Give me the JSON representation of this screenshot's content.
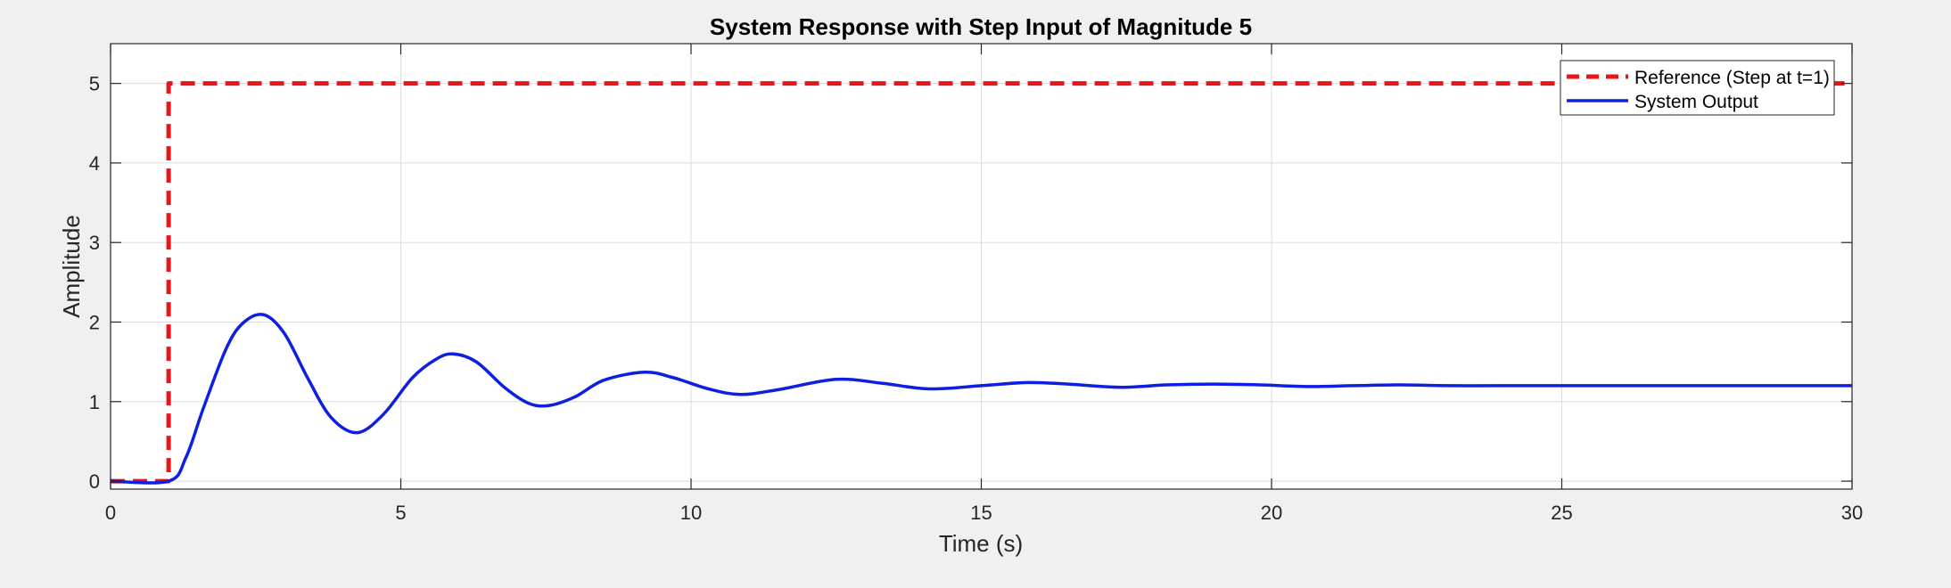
{
  "chart_data": {
    "type": "line",
    "title": "System Response with Step Input of Magnitude 5",
    "xlabel": "Time (s)",
    "ylabel": "Amplitude",
    "xlim": [
      0,
      30
    ],
    "ylim": [
      -0.1,
      5.5
    ],
    "xticks": [
      0,
      5,
      10,
      15,
      20,
      25,
      30
    ],
    "yticks": [
      0,
      1,
      2,
      3,
      4,
      5
    ],
    "grid": true,
    "legend_position": "top-right",
    "series": [
      {
        "name": "Reference (Step at t=1)",
        "style": "dashed",
        "color": "#e8151b",
        "x": [
          0,
          1,
          1,
          30
        ],
        "y": [
          0,
          0,
          5,
          5
        ]
      },
      {
        "name": "System Output",
        "style": "solid",
        "color": "#0f1fe0",
        "x": [
          0,
          1.0,
          1.3,
          1.6,
          2.0,
          2.3,
          2.65,
          3.0,
          3.4,
          3.8,
          4.25,
          4.7,
          5.2,
          5.6,
          5.9,
          6.3,
          6.8,
          7.2,
          7.55,
          8.0,
          8.5,
          9.2,
          9.7,
          10.3,
          10.85,
          11.5,
          12.5,
          13.3,
          14.1,
          15.0,
          15.8,
          16.5,
          17.4,
          18.2,
          19.0,
          19.8,
          20.6,
          21.4,
          22.2,
          23.1,
          24.0,
          25.0,
          26.0,
          27.0,
          28.0,
          29.0,
          30.0
        ],
        "y": [
          0.0,
          0.0,
          0.3,
          0.92,
          1.68,
          2.0,
          2.09,
          1.85,
          1.29,
          0.8,
          0.61,
          0.84,
          1.3,
          1.53,
          1.6,
          1.5,
          1.17,
          0.98,
          0.95,
          1.06,
          1.27,
          1.37,
          1.3,
          1.16,
          1.09,
          1.15,
          1.28,
          1.23,
          1.16,
          1.2,
          1.24,
          1.22,
          1.18,
          1.21,
          1.22,
          1.21,
          1.19,
          1.2,
          1.21,
          1.2,
          1.2,
          1.2,
          1.2,
          1.2,
          1.2,
          1.2,
          1.2
        ]
      }
    ]
  }
}
